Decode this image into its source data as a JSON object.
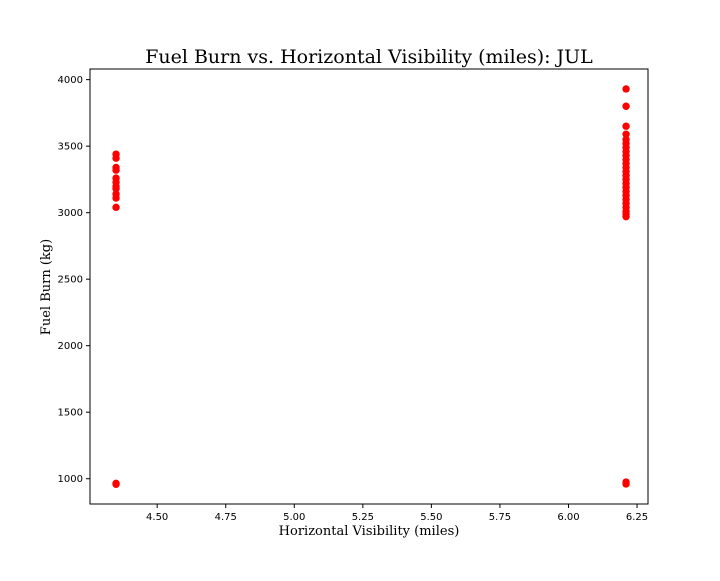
{
  "chart_data": {
    "type": "scatter",
    "title": "Fuel Burn vs. Horizontal Visibility (miles): JUL",
    "xlabel": "Horizontal Visibility (miles)",
    "ylabel": "Fuel Burn (kg)",
    "xlim": [
      4.255,
      6.29
    ],
    "ylim": [
      810,
      4080
    ],
    "x_ticks": [
      4.5,
      4.75,
      5.0,
      5.25,
      5.5,
      5.75,
      6.0,
      6.25
    ],
    "x_tick_labels": [
      "4.50",
      "4.75",
      "5.00",
      "5.25",
      "5.50",
      "5.75",
      "6.00",
      "6.25"
    ],
    "y_ticks": [
      1000,
      1500,
      2000,
      2500,
      3000,
      3500,
      4000
    ],
    "y_tick_labels": [
      "1000",
      "1500",
      "2000",
      "2500",
      "3000",
      "3500",
      "4000"
    ],
    "grid": false,
    "marker_color": "#ff0000",
    "points": [
      {
        "x": 4.35,
        "y": 3440
      },
      {
        "x": 4.35,
        "y": 3410
      },
      {
        "x": 4.35,
        "y": 3340
      },
      {
        "x": 4.35,
        "y": 3320
      },
      {
        "x": 4.35,
        "y": 3260
      },
      {
        "x": 4.35,
        "y": 3230
      },
      {
        "x": 4.35,
        "y": 3200
      },
      {
        "x": 4.35,
        "y": 3180
      },
      {
        "x": 4.35,
        "y": 3140
      },
      {
        "x": 4.35,
        "y": 3110
      },
      {
        "x": 4.35,
        "y": 3040
      },
      {
        "x": 4.35,
        "y": 965
      },
      {
        "x": 4.35,
        "y": 958
      },
      {
        "x": 6.21,
        "y": 3930
      },
      {
        "x": 6.21,
        "y": 3800
      },
      {
        "x": 6.21,
        "y": 3650
      },
      {
        "x": 6.21,
        "y": 3590
      },
      {
        "x": 6.21,
        "y": 3550
      },
      {
        "x": 6.21,
        "y": 3520
      },
      {
        "x": 6.21,
        "y": 3490
      },
      {
        "x": 6.21,
        "y": 3460
      },
      {
        "x": 6.21,
        "y": 3430
      },
      {
        "x": 6.21,
        "y": 3400
      },
      {
        "x": 6.21,
        "y": 3370
      },
      {
        "x": 6.21,
        "y": 3340
      },
      {
        "x": 6.21,
        "y": 3310
      },
      {
        "x": 6.21,
        "y": 3280
      },
      {
        "x": 6.21,
        "y": 3250
      },
      {
        "x": 6.21,
        "y": 3220
      },
      {
        "x": 6.21,
        "y": 3190
      },
      {
        "x": 6.21,
        "y": 3160
      },
      {
        "x": 6.21,
        "y": 3130
      },
      {
        "x": 6.21,
        "y": 3100
      },
      {
        "x": 6.21,
        "y": 3070
      },
      {
        "x": 6.21,
        "y": 3040
      },
      {
        "x": 6.21,
        "y": 3010
      },
      {
        "x": 6.21,
        "y": 2990
      },
      {
        "x": 6.21,
        "y": 2970
      },
      {
        "x": 6.21,
        "y": 975
      },
      {
        "x": 6.21,
        "y": 960
      }
    ]
  }
}
